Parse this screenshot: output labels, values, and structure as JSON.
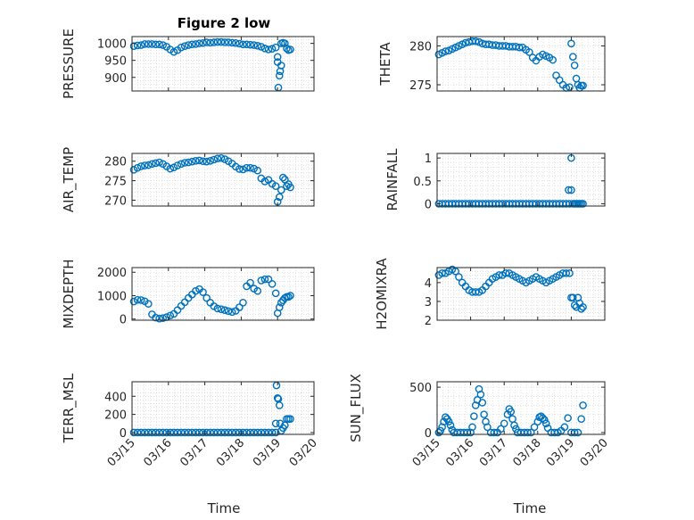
{
  "figure": {
    "title": "Figure 2 low",
    "xlabel": "Time",
    "xticks": [
      "03/15",
      "03/16",
      "03/17",
      "03/18",
      "03/19",
      "03/20"
    ],
    "marker_color": "#0072BD"
  },
  "chart_data": [
    {
      "type": "scatter",
      "ylabel": "PRESSURE",
      "yticks": [
        900,
        950,
        1000
      ],
      "ylim": [
        860,
        1020
      ],
      "xlim": [
        0,
        5
      ],
      "grid": true,
      "x": [
        0.05,
        0.15,
        0.25,
        0.35,
        0.45,
        0.55,
        0.65,
        0.75,
        0.85,
        0.95,
        1.05,
        1.15,
        1.25,
        1.35,
        1.45,
        1.55,
        1.65,
        1.75,
        1.85,
        1.95,
        2.05,
        2.15,
        2.25,
        2.35,
        2.45,
        2.55,
        2.65,
        2.75,
        2.85,
        2.95,
        3.05,
        3.15,
        3.25,
        3.35,
        3.45,
        3.55,
        3.65,
        3.75,
        3.85,
        3.95,
        4.0,
        4.0,
        4.02,
        4.05,
        4.07,
        4.1,
        4.1,
        4.15,
        4.2,
        4.25,
        4.3,
        4.35
      ],
      "y": [
        992,
        994,
        995,
        998,
        998,
        998,
        997,
        997,
        995,
        990,
        982,
        975,
        980,
        988,
        992,
        995,
        997,
        998,
        1000,
        1001,
        1003,
        1002,
        1003,
        1004,
        1004,
        1003,
        1003,
        1002,
        1001,
        999,
        997,
        997,
        996,
        995,
        993,
        990,
        985,
        982,
        984,
        988,
        960,
        945,
        870,
        905,
        918,
        935,
        1000,
        1002,
        1000,
        985,
        980,
        982
      ]
    },
    {
      "type": "scatter",
      "ylabel": "THETA",
      "yticks": [
        275,
        280
      ],
      "ylim": [
        274.2,
        281.2
      ],
      "xlim": [
        0,
        5
      ],
      "grid": true,
      "x": [
        0.05,
        0.15,
        0.25,
        0.35,
        0.45,
        0.55,
        0.65,
        0.75,
        0.85,
        0.95,
        1.05,
        1.15,
        1.25,
        1.35,
        1.45,
        1.55,
        1.65,
        1.75,
        1.85,
        1.95,
        2.05,
        2.15,
        2.25,
        2.35,
        2.45,
        2.55,
        2.65,
        2.75,
        2.85,
        2.95,
        3.05,
        3.15,
        3.25,
        3.35,
        3.45,
        3.55,
        3.65,
        3.75,
        3.85,
        3.95,
        4.0,
        4.05,
        4.1,
        4.15,
        4.2,
        4.25,
        4.3,
        4.35
      ],
      "y": [
        278.9,
        279.1,
        279.3,
        279.4,
        279.6,
        279.8,
        280.0,
        280.2,
        280.4,
        280.5,
        280.6,
        280.6,
        280.5,
        280.3,
        280.2,
        280.2,
        280.1,
        280.1,
        280.0,
        280.0,
        280.0,
        279.9,
        279.9,
        279.9,
        279.8,
        279.8,
        279.5,
        279.2,
        278.5,
        278.1,
        278.6,
        278.9,
        278.7,
        278.5,
        278.2,
        276.2,
        275.6,
        275.0,
        274.6,
        274.7,
        280.3,
        278.6,
        277.5,
        275.8,
        275.0,
        274.6,
        274.9,
        274.9
      ]
    },
    {
      "type": "scatter",
      "ylabel": "AIR_TEMP",
      "yticks": [
        270,
        275,
        280
      ],
      "ylim": [
        268.5,
        282
      ],
      "xlim": [
        0,
        5
      ],
      "grid": true,
      "x": [
        0.05,
        0.15,
        0.25,
        0.35,
        0.45,
        0.55,
        0.65,
        0.75,
        0.85,
        0.95,
        1.05,
        1.15,
        1.25,
        1.35,
        1.45,
        1.55,
        1.65,
        1.75,
        1.85,
        1.95,
        2.05,
        2.15,
        2.25,
        2.35,
        2.45,
        2.55,
        2.65,
        2.75,
        2.85,
        2.95,
        3.05,
        3.15,
        3.25,
        3.35,
        3.45,
        3.55,
        3.65,
        3.75,
        3.85,
        3.95,
        4.0,
        4.05,
        4.1,
        4.15,
        4.2,
        4.25,
        4.3,
        4.35
      ],
      "y": [
        277.8,
        278.3,
        278.7,
        278.9,
        279.0,
        279.3,
        279.5,
        279.7,
        279.3,
        278.7,
        278.1,
        278.4,
        278.9,
        279.3,
        279.6,
        279.7,
        279.9,
        280.1,
        280.2,
        280.0,
        279.9,
        280.1,
        280.4,
        280.7,
        280.8,
        280.5,
        280.0,
        279.4,
        278.6,
        278.0,
        277.9,
        278.3,
        278.3,
        278.1,
        277.6,
        275.6,
        274.8,
        275.2,
        274.2,
        273.6,
        269.6,
        270.8,
        272.6,
        275.8,
        275.3,
        273.6,
        274.1,
        273.3
      ]
    },
    {
      "type": "scatter",
      "ylabel": "RAINFALL",
      "yticks": [
        0,
        0.5,
        1
      ],
      "ylim": [
        -0.05,
        1.1
      ],
      "xlim": [
        0,
        5
      ],
      "grid": true,
      "x": [
        0.05,
        0.15,
        0.25,
        0.35,
        0.45,
        0.55,
        0.65,
        0.75,
        0.85,
        0.95,
        1.05,
        1.15,
        1.25,
        1.35,
        1.45,
        1.55,
        1.65,
        1.75,
        1.85,
        1.95,
        2.05,
        2.15,
        2.25,
        2.35,
        2.45,
        2.55,
        2.65,
        2.75,
        2.85,
        2.95,
        3.05,
        3.15,
        3.25,
        3.35,
        3.45,
        3.55,
        3.65,
        3.75,
        3.85,
        3.95,
        3.92,
        4.0,
        4.0,
        4.05,
        4.1,
        4.15,
        4.2,
        4.25,
        4.3,
        4.35
      ],
      "y": [
        0,
        0,
        0,
        0,
        0,
        0,
        0,
        0,
        0,
        0,
        0,
        0,
        0,
        0,
        0,
        0,
        0,
        0,
        0,
        0,
        0,
        0,
        0,
        0,
        0,
        0,
        0,
        0,
        0,
        0,
        0,
        0,
        0,
        0,
        0,
        0,
        0,
        0,
        0,
        0,
        0.3,
        1.0,
        0.3,
        0,
        0,
        0,
        0,
        0,
        0,
        0
      ]
    },
    {
      "type": "scatter",
      "ylabel": "MIXDEPTH",
      "yticks": [
        0,
        1000,
        2000
      ],
      "ylim": [
        -50,
        2200
      ],
      "xlim": [
        0,
        5
      ],
      "grid": true,
      "x": [
        0.05,
        0.15,
        0.25,
        0.35,
        0.45,
        0.55,
        0.65,
        0.75,
        0.85,
        0.95,
        1.05,
        1.15,
        1.25,
        1.35,
        1.45,
        1.55,
        1.65,
        1.75,
        1.85,
        1.95,
        2.05,
        2.15,
        2.25,
        2.35,
        2.45,
        2.55,
        2.65,
        2.75,
        2.85,
        2.95,
        3.05,
        3.15,
        3.25,
        3.35,
        3.45,
        3.55,
        3.65,
        3.75,
        3.85,
        3.95,
        4.0,
        4.05,
        4.1,
        4.15,
        4.2,
        4.25,
        4.3,
        4.35
      ],
      "y": [
        750,
        820,
        810,
        760,
        650,
        200,
        60,
        20,
        40,
        80,
        150,
        220,
        380,
        560,
        720,
        900,
        1050,
        1200,
        1280,
        1150,
        900,
        700,
        550,
        450,
        420,
        380,
        340,
        300,
        350,
        500,
        700,
        1400,
        1550,
        1300,
        1200,
        1650,
        1700,
        1700,
        1500,
        1100,
        250,
        500,
        700,
        800,
        900,
        950,
        950,
        1000
      ]
    },
    {
      "type": "scatter",
      "ylabel": "H2OMIXRA",
      "yticks": [
        2,
        3,
        4
      ],
      "ylim": [
        2,
        4.8
      ],
      "xlim": [
        0,
        5
      ],
      "grid": true,
      "x": [
        0.05,
        0.15,
        0.25,
        0.35,
        0.45,
        0.55,
        0.65,
        0.75,
        0.85,
        0.95,
        1.05,
        1.15,
        1.25,
        1.35,
        1.45,
        1.55,
        1.65,
        1.75,
        1.85,
        1.95,
        2.05,
        2.15,
        2.25,
        2.35,
        2.45,
        2.55,
        2.65,
        2.75,
        2.85,
        2.95,
        3.05,
        3.15,
        3.25,
        3.35,
        3.45,
        3.55,
        3.65,
        3.75,
        3.85,
        3.95,
        4.0,
        4.05,
        4.1,
        4.15,
        4.2,
        4.25,
        4.3,
        4.35
      ],
      "y": [
        4.4,
        4.5,
        4.5,
        4.6,
        4.7,
        4.6,
        4.3,
        4.0,
        3.8,
        3.6,
        3.5,
        3.5,
        3.5,
        3.6,
        3.8,
        4.0,
        4.2,
        4.3,
        4.4,
        4.4,
        4.5,
        4.5,
        4.4,
        4.3,
        4.2,
        4.1,
        4.0,
        4.1,
        4.2,
        4.3,
        4.2,
        4.1,
        4.0,
        4.1,
        4.2,
        4.3,
        4.4,
        4.5,
        4.5,
        4.5,
        3.2,
        3.2,
        2.8,
        2.7,
        3.2,
        2.9,
        2.6,
        2.7
      ]
    },
    {
      "type": "scatter",
      "ylabel": "TERR_MSL",
      "yticks": [
        0,
        200,
        400
      ],
      "ylim": [
        -20,
        560
      ],
      "xlim": [
        0,
        5
      ],
      "grid": true,
      "x": [
        0.05,
        0.15,
        0.25,
        0.35,
        0.45,
        0.55,
        0.65,
        0.75,
        0.85,
        0.95,
        1.05,
        1.15,
        1.25,
        1.35,
        1.45,
        1.55,
        1.65,
        1.75,
        1.85,
        1.95,
        2.05,
        2.15,
        2.25,
        2.35,
        2.45,
        2.55,
        2.65,
        2.75,
        2.85,
        2.95,
        3.05,
        3.15,
        3.25,
        3.35,
        3.45,
        3.55,
        3.65,
        3.75,
        3.85,
        3.95,
        3.95,
        3.97,
        4.0,
        4.02,
        4.05,
        4.07,
        4.1,
        4.15,
        4.2,
        4.25,
        4.3,
        4.35
      ],
      "y": [
        0,
        0,
        0,
        0,
        0,
        0,
        0,
        0,
        0,
        0,
        0,
        0,
        0,
        0,
        0,
        0,
        0,
        0,
        0,
        0,
        0,
        0,
        0,
        0,
        0,
        0,
        0,
        0,
        0,
        0,
        0,
        0,
        0,
        0,
        0,
        0,
        0,
        0,
        0,
        0,
        100,
        520,
        380,
        370,
        300,
        100,
        20,
        50,
        80,
        150,
        150,
        150
      ]
    },
    {
      "type": "scatter",
      "ylabel": "SUN_FLUX",
      "yticks": [
        0,
        500
      ],
      "ylim": [
        -20,
        560
      ],
      "xlim": [
        0,
        5
      ],
      "grid": true,
      "x": [
        0.05,
        0.1,
        0.15,
        0.2,
        0.25,
        0.3,
        0.35,
        0.4,
        0.45,
        0.5,
        0.6,
        0.7,
        0.8,
        0.9,
        1.0,
        1.05,
        1.1,
        1.15,
        1.2,
        1.25,
        1.3,
        1.35,
        1.4,
        1.45,
        1.5,
        1.6,
        1.7,
        1.8,
        1.9,
        2.0,
        2.1,
        2.15,
        2.2,
        2.25,
        2.3,
        2.35,
        2.4,
        2.5,
        2.6,
        2.7,
        2.8,
        2.9,
        3.0,
        3.05,
        3.1,
        3.15,
        3.2,
        3.25,
        3.3,
        3.4,
        3.5,
        3.6,
        3.7,
        3.8,
        3.9,
        4.0,
        4.1,
        4.2,
        4.3,
        4.35
      ],
      "y": [
        0,
        20,
        60,
        120,
        170,
        150,
        120,
        80,
        30,
        0,
        0,
        0,
        0,
        0,
        0,
        60,
        180,
        300,
        360,
        480,
        420,
        330,
        200,
        120,
        60,
        0,
        0,
        0,
        40,
        100,
        200,
        260,
        230,
        150,
        80,
        40,
        0,
        0,
        0,
        0,
        0,
        60,
        120,
        170,
        180,
        160,
        140,
        100,
        50,
        0,
        0,
        0,
        20,
        60,
        160,
        0,
        0,
        0,
        150,
        300
      ]
    }
  ]
}
